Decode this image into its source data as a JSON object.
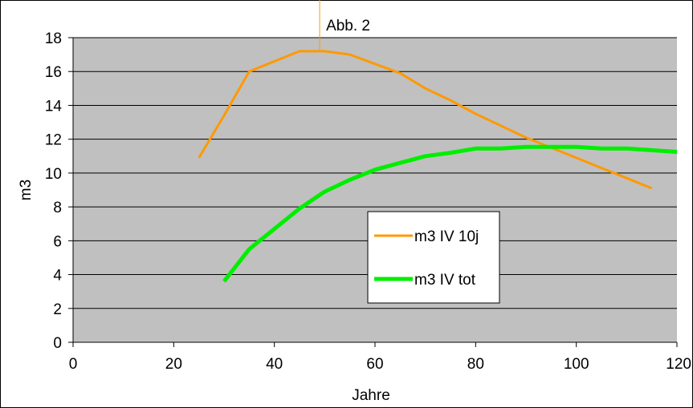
{
  "chart_data": {
    "type": "line",
    "annotation": "Abb. 2",
    "xlabel": "Jahre",
    "ylabel": "m3",
    "xlim": [
      0,
      120
    ],
    "ylim": [
      0,
      18
    ],
    "x_ticks": [
      0,
      20,
      40,
      60,
      80,
      100,
      120
    ],
    "y_ticks": [
      0,
      2,
      4,
      6,
      8,
      10,
      12,
      14,
      16,
      18
    ],
    "grid": "horizontal",
    "legend_position": "center-right",
    "plot_background": "#c0c0c0",
    "series": [
      {
        "name": "m3 IV 10j",
        "color": "#ff9900",
        "x": [
          25,
          30,
          35,
          45,
          50,
          55,
          65,
          70,
          75,
          80,
          90,
          100,
          110,
          115
        ],
        "y": [
          10.9,
          13.4,
          16.0,
          17.2,
          17.2,
          17.0,
          15.9,
          15.0,
          14.3,
          13.5,
          12.1,
          10.9,
          9.7,
          9.1
        ]
      },
      {
        "name": "m3 IV tot",
        "color": "#00ee00",
        "x": [
          30,
          35,
          40,
          45,
          50,
          55,
          60,
          65,
          70,
          75,
          80,
          85,
          90,
          95,
          100,
          105,
          110,
          115,
          120
        ],
        "y": [
          3.6,
          5.5,
          6.7,
          7.9,
          8.9,
          9.6,
          10.2,
          10.6,
          11.0,
          11.2,
          11.45,
          11.45,
          11.55,
          11.55,
          11.55,
          11.45,
          11.45,
          11.35,
          11.25
        ]
      }
    ]
  }
}
